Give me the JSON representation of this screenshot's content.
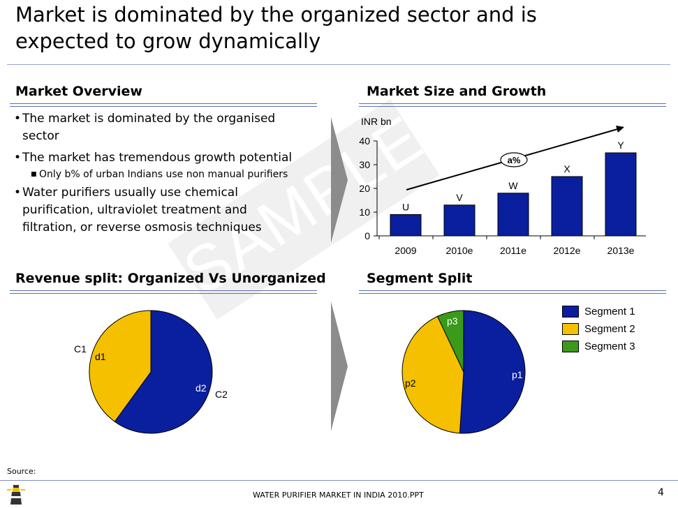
{
  "slide": {
    "title_line1": "Market is dominated by the organized sector and is",
    "title_line2": "expected to grow dynamically",
    "page_number": "4",
    "footer_text": "WATER PURIFIER MARKET IN INDIA 2010.PPT",
    "source_label": "Source:",
    "watermark": "SAMPLE"
  },
  "overview": {
    "heading": "Market Overview",
    "bullets": [
      {
        "line1": "The market is dominated by the organised",
        "line2": "sector"
      },
      {
        "line1": "The market has tremendous growth potential"
      },
      {
        "line1": "Water purifiers usually use chemical",
        "line2": "purification, ultraviolet treatment and",
        "line3": "filtration, or reverse osmosis techniques"
      }
    ],
    "sub_bullet": "Only b% of urban Indians use non manual purifiers"
  },
  "market_size": {
    "heading": "Market Size and Growth",
    "unit": "INR bn",
    "growth_label": "a%"
  },
  "revenue_split": {
    "heading": "Revenue split: Organized Vs Unorganized",
    "labels": {
      "c1": "C1",
      "d1": "d1",
      "c2": "C2",
      "d2": "d2"
    }
  },
  "segment_split": {
    "heading": "Segment Split",
    "legend": [
      "Segment 1",
      "Segment 2",
      "Segment 3"
    ],
    "labels": {
      "p1": "p1",
      "p2": "p2",
      "p3": "p3"
    }
  },
  "colors": {
    "blue": "#0a1f9e",
    "yellow": "#f5c000",
    "green": "#3a9a1a",
    "chevron": "#8c8c8c"
  },
  "chart_data": [
    {
      "type": "bar",
      "categories": [
        "2009",
        "2010e",
        "2011e",
        "2012e",
        "2013e"
      ],
      "values": [
        9,
        13,
        18,
        25,
        35
      ],
      "data_labels": [
        "U",
        "V",
        "W",
        "X",
        "Y"
      ],
      "ylabel": "INR bn",
      "ylim": [
        0,
        40
      ],
      "yticks": [
        0,
        10,
        20,
        30,
        40
      ]
    },
    {
      "type": "pie",
      "categories": [
        "C1",
        "C2"
      ],
      "values": [
        40,
        60
      ],
      "data_labels": [
        "d1",
        "d2"
      ]
    },
    {
      "type": "pie",
      "categories": [
        "Segment 1",
        "Segment 2",
        "Segment 3"
      ],
      "values": [
        51,
        42,
        7
      ],
      "data_labels": [
        "p1",
        "p2",
        "p3"
      ]
    }
  ]
}
